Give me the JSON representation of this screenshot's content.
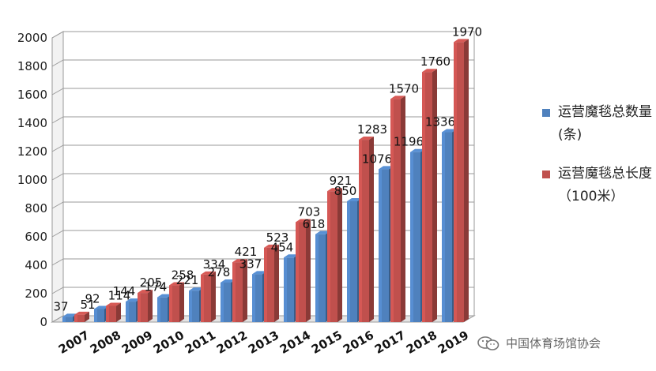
{
  "chart_data": {
    "type": "bar",
    "categories": [
      "2007",
      "2008",
      "2009",
      "2010",
      "2011",
      "2012",
      "2013",
      "2014",
      "2015",
      "2016",
      "2017",
      "2018",
      "2019"
    ],
    "series": [
      {
        "name": "运营魔毯总数量(条)",
        "values": [
          37,
          92,
          144,
          174,
          221,
          278,
          337,
          454,
          618,
          850,
          1076,
          1196,
          1336
        ],
        "color": "#4f81bd"
      },
      {
        "name": "运营魔毯总长度（100米）",
        "values": [
          51,
          114,
          205,
          258,
          334,
          421,
          523,
          703,
          921,
          1283,
          1570,
          1760,
          1970
        ],
        "color": "#c0504d"
      }
    ],
    "yticks": [
      0,
      200,
      400,
      600,
      800,
      1000,
      1200,
      1400,
      1600,
      1800,
      2000
    ],
    "ylim": [
      0,
      2000
    ],
    "grid": true,
    "legend_position": "right"
  },
  "legend": {
    "items": [
      {
        "label": "运营魔毯总数量(条)",
        "color": "#4f81bd"
      },
      {
        "label": "运营魔毯总长度（100米）",
        "color": "#c0504d"
      }
    ]
  },
  "watermark": {
    "text": "中国体育场馆协会",
    "icon": "wechat-icon"
  }
}
